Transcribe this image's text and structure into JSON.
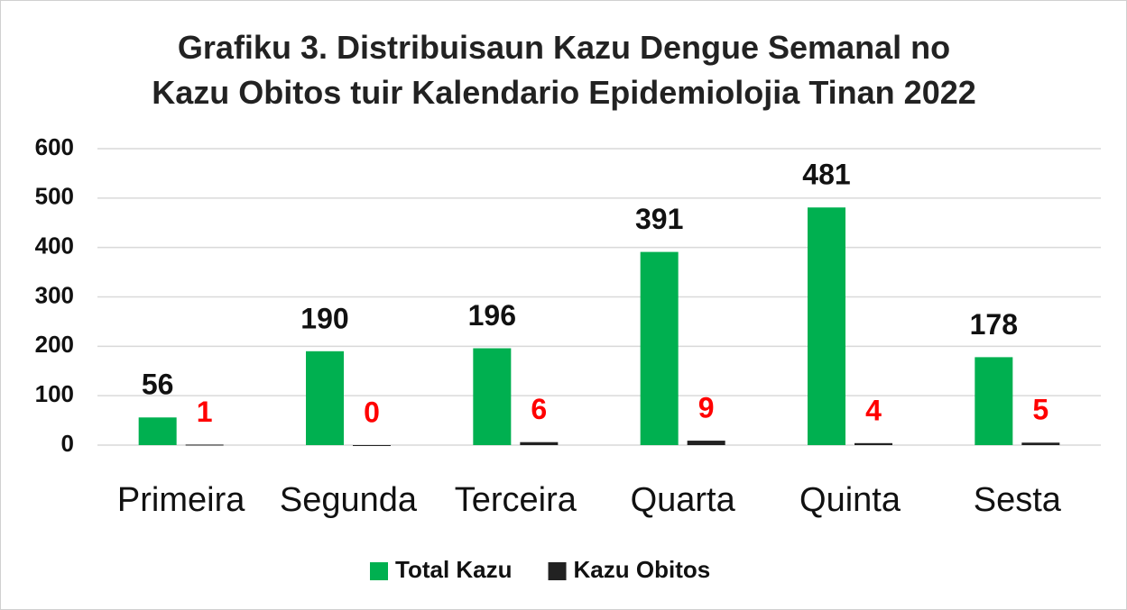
{
  "chart_data": {
    "type": "bar",
    "title": "Grafiku 3. Distribuisaun Kazu Dengue Semanal no Kazu Obitos tuir Kalendario Epidemiolojia Tinan 2022",
    "categories": [
      "Primeira",
      "Segunda",
      "Terceira",
      "Quarta",
      "Quinta",
      "Sesta"
    ],
    "series": [
      {
        "name": "Total Kazu",
        "color": "#00b050",
        "label_color": "#111111",
        "values": [
          56,
          190,
          196,
          391,
          481,
          178
        ]
      },
      {
        "name": "Kazu Obitos",
        "color": "#222222",
        "label_color": "#ff0000",
        "values": [
          1,
          0,
          6,
          9,
          4,
          5
        ]
      }
    ],
    "ylim": [
      0,
      600
    ],
    "yticks": [
      0,
      100,
      200,
      300,
      400,
      500,
      600
    ],
    "grid": true,
    "legend": "bottom"
  }
}
